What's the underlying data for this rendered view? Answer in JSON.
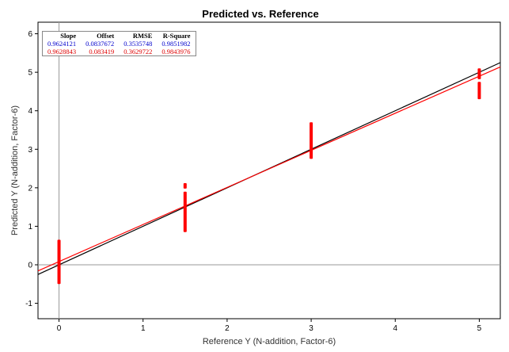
{
  "chart_data": {
    "type": "scatter",
    "title": "Predicted vs. Reference",
    "xlabel": "Reference Y (N-addition, Factor-6)",
    "ylabel": "Predicted Y (N-addition, Factor-6)",
    "xlim": [
      -0.25,
      5.25
    ],
    "ylim": [
      -1.4,
      6.3
    ],
    "x_ticks": [
      "0",
      "1",
      "2",
      "3",
      "4",
      "5"
    ],
    "y_ticks": [
      "-1",
      "0",
      "1",
      "2",
      "3",
      "4",
      "5",
      "6"
    ],
    "grid": false,
    "colors": {
      "calibration": "#0000cc",
      "validation": "#ff0000",
      "target_line": "#000000",
      "regression_line": "#ff0000",
      "axis_lines": "#999999"
    },
    "series": [
      {
        "role": "validation-samples",
        "points": [
          {
            "x": 0,
            "y_range": [
              -0.5,
              0.65
            ]
          },
          {
            "x": 1.5,
            "y_range": [
              0.85,
              1.9
            ]
          },
          {
            "x": 1.5,
            "y_range": [
              1.98,
              2.12
            ]
          },
          {
            "x": 3,
            "y_range": [
              2.75,
              3.7
            ]
          },
          {
            "x": 5,
            "y_range": [
              4.3,
              4.75
            ]
          },
          {
            "x": 5,
            "y_range": [
              4.82,
              5.1
            ]
          }
        ]
      }
    ],
    "lines": [
      {
        "role": "target",
        "slope": 1,
        "offset": 0
      },
      {
        "role": "regression",
        "slope": 0.9628843,
        "offset": 0.083419
      }
    ],
    "stats_table": {
      "headers": [
        "Slope",
        "Offset",
        "RMSE",
        "R-Square"
      ],
      "rows": [
        {
          "color": "#0000cc",
          "values": [
            "0.9624121",
            "0.0837672",
            "0.3535748",
            "0.9851982"
          ]
        },
        {
          "color": "#dd0000",
          "values": [
            "0.9628843",
            "0.083419",
            "0.3629722",
            "0.9843976"
          ]
        }
      ]
    }
  }
}
